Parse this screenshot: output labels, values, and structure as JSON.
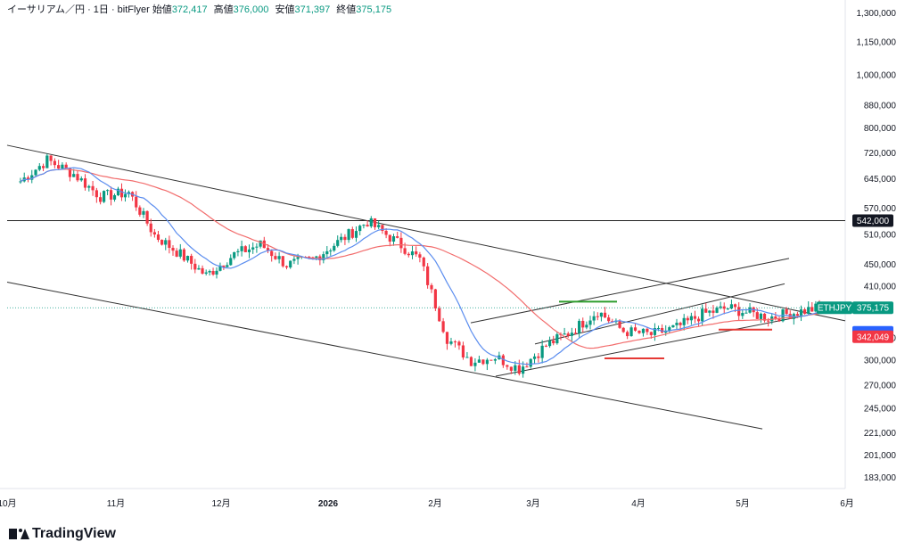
{
  "header": {
    "symbol": "イーサリアム／円 · 1日 · bitFlyer",
    "open_label": "始値",
    "open": "372,417",
    "high_label": "高値",
    "high": "376,000",
    "low_label": "安値",
    "low": "371,397",
    "close_label": "終値",
    "close": "375,175"
  },
  "brand": {
    "name": "TradingView",
    "logo_icon": "tradingview-logo-icon"
  },
  "colors": {
    "up": "#089981",
    "down": "#f23645",
    "sma_fast": "#5b8def",
    "sma_slow": "#f26d6d",
    "trendline": "#222222",
    "support": "#e53935",
    "resistance": "#2e9e2e"
  },
  "chart_data": {
    "type": "candlestick",
    "symbol": "ETHJPY",
    "y_scale": "log",
    "ylim": [
      170000,
      1400000
    ],
    "y_ticks": [
      "1,300,000",
      "1,150,000",
      "1,000,000",
      "880,000",
      "800,000",
      "720,000",
      "645,000",
      "570,000",
      "510,000",
      "450,000",
      "410,000",
      "330,000",
      "300,000",
      "270,000",
      "245,000",
      "221,000",
      "201,000",
      "183,000"
    ],
    "x_ticks": [
      "10月",
      "11月",
      "12月",
      "2026",
      "2月",
      "3月",
      "4月",
      "5月",
      "6月"
    ],
    "price_labels": {
      "symbol_label": "ETHJPY",
      "last": "375,175",
      "horizontal_level": "542,000",
      "ma_value": "342,049"
    },
    "horizontal_line": 542000,
    "close_path": [
      {
        "x": "10月",
        "y": 640000
      },
      {
        "x": "10月",
        "y": 700000
      },
      {
        "x": "10月",
        "y": 660000
      },
      {
        "x": "10月",
        "y": 600000
      },
      {
        "x": "11月",
        "y": 610000
      },
      {
        "x": "11月",
        "y": 510000
      },
      {
        "x": "11月",
        "y": 470000
      },
      {
        "x": "11月",
        "y": 430000
      },
      {
        "x": "12月",
        "y": 470000
      },
      {
        "x": "12月",
        "y": 490000
      },
      {
        "x": "12月",
        "y": 450000
      },
      {
        "x": "12月",
        "y": 460000
      },
      {
        "x": "2026",
        "y": 500000
      },
      {
        "x": "2026",
        "y": 540000
      },
      {
        "x": "2026",
        "y": 500000
      },
      {
        "x": "2026",
        "y": 460000
      },
      {
        "x": "2月",
        "y": 330000
      },
      {
        "x": "2月",
        "y": 300000
      },
      {
        "x": "2月",
        "y": 305000
      },
      {
        "x": "2月",
        "y": 290000
      },
      {
        "x": "3月",
        "y": 320000
      },
      {
        "x": "3月",
        "y": 340000
      },
      {
        "x": "3月",
        "y": 370000
      },
      {
        "x": "3月",
        "y": 340000
      },
      {
        "x": "4月",
        "y": 335000
      },
      {
        "x": "4月",
        "y": 345000
      },
      {
        "x": "4月",
        "y": 365000
      },
      {
        "x": "4月",
        "y": 375000
      },
      {
        "x": "5月",
        "y": 360000
      },
      {
        "x": "5月",
        "y": 375175
      }
    ]
  }
}
